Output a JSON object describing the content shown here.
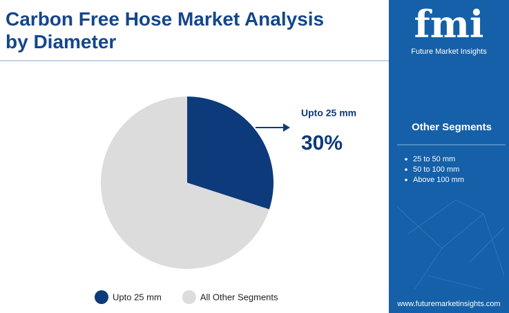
{
  "chart_data": {
    "type": "pie",
    "title": "Carbon Free Hose Market Analysis by Diameter",
    "categories": [
      "Upto 25 mm",
      "All Other Segments"
    ],
    "values": [
      30,
      70
    ],
    "value_labels": [
      "30%",
      null
    ],
    "colors": [
      "#0d3a7a",
      "#dcdcdc"
    ],
    "legend": "bottom"
  },
  "sidebar": {
    "brand": "fmi",
    "brand_name": "Future Market Insights",
    "heading": "Other Segments",
    "items": [
      "25 to 50 mm",
      "50 to 100 mm",
      "Above 100 mm"
    ],
    "website": "www.futuremarketinsights.com"
  }
}
